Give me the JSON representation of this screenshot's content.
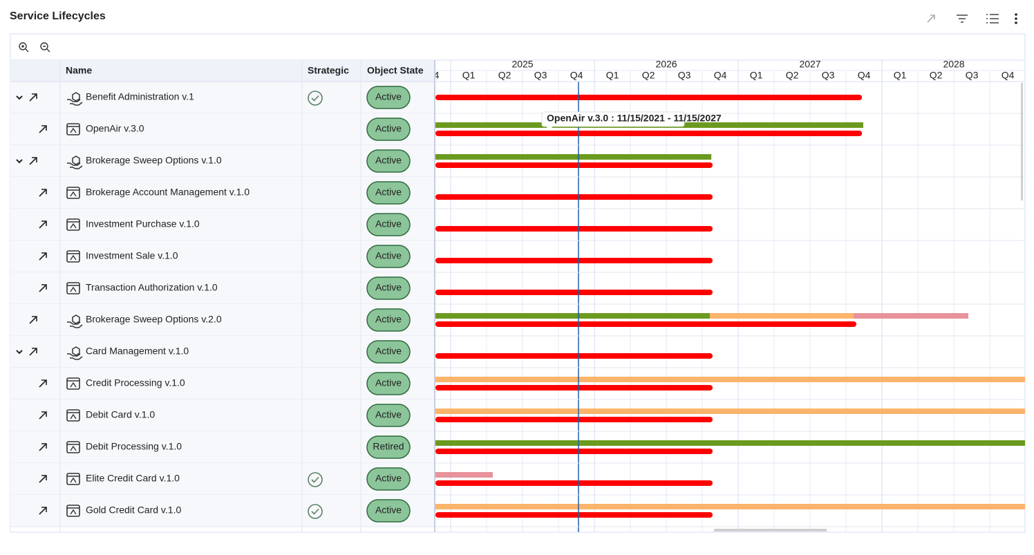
{
  "header": {
    "title": "Service Lifecycles"
  },
  "table": {
    "columns": [
      "Name",
      "Strategic",
      "Object State"
    ],
    "rows": [
      {
        "name": "Benefit Administration v.1",
        "kind": "service",
        "expandable": true,
        "strategic": true,
        "state": "Active",
        "bars": [
          {
            "color": "#ff0000",
            "start": 2024.894,
            "end": 2027.861
          }
        ]
      },
      {
        "name": "OpenAir v.3.0",
        "kind": "application",
        "expandable": false,
        "strategic": false,
        "state": "Active",
        "bars": [
          {
            "color": "#6b9a1f",
            "start": 2024.894,
            "end": 2027.87
          },
          {
            "color": "#ff0000",
            "start": 2024.894,
            "end": 2027.861
          }
        ]
      },
      {
        "name": "Brokerage Sweep Options v.1.0",
        "kind": "service",
        "expandable": true,
        "strategic": false,
        "state": "Active",
        "bars": [
          {
            "color": "#6b9a1f",
            "start": 2024.894,
            "end": 2026.813
          },
          {
            "color": "#ff0000",
            "start": 2024.894,
            "end": 2026.822
          }
        ]
      },
      {
        "name": "Brokerage Account Management v.1.0",
        "kind": "application",
        "expandable": false,
        "strategic": false,
        "state": "Active",
        "bars": [
          {
            "color": "#ff0000",
            "start": 2024.894,
            "end": 2026.822
          }
        ]
      },
      {
        "name": "Investment Purchase v.1.0",
        "kind": "application",
        "expandable": false,
        "strategic": false,
        "state": "Active",
        "bars": [
          {
            "color": "#ff0000",
            "start": 2024.894,
            "end": 2026.822
          }
        ]
      },
      {
        "name": "Investment Sale v.1.0",
        "kind": "application",
        "expandable": false,
        "strategic": false,
        "state": "Active",
        "bars": [
          {
            "color": "#ff0000",
            "start": 2024.894,
            "end": 2026.822
          }
        ]
      },
      {
        "name": "Transaction Authorization v.1.0",
        "kind": "application",
        "expandable": false,
        "strategic": false,
        "state": "Active",
        "bars": [
          {
            "color": "#ff0000",
            "start": 2024.894,
            "end": 2026.822
          }
        ]
      },
      {
        "name": "Brokerage Sweep Options v.2.0",
        "kind": "service",
        "expandable": false,
        "strategic": false,
        "state": "Active",
        "bars": [
          {
            "color": "#6b9a1f",
            "start": 2024.894,
            "end": 2026.803
          },
          {
            "color": "#fbb46b",
            "start": 2026.803,
            "end": 2027.803
          },
          {
            "color": "#e8929b",
            "start": 2027.803,
            "end": 2028.601
          },
          {
            "color": "#ff0000",
            "start": 2024.894,
            "end": 2027.822
          }
        ]
      },
      {
        "name": "Card Management v.1.0",
        "kind": "service",
        "expandable": true,
        "strategic": false,
        "state": "Active",
        "bars": [
          {
            "color": "#ff0000",
            "start": 2024.894,
            "end": 2026.822
          }
        ]
      },
      {
        "name": "Credit Processing v.1.0",
        "kind": "application",
        "expandable": false,
        "strategic": false,
        "state": "Active",
        "bars": [
          {
            "color": "#fbb46b",
            "start": 2024.894,
            "end": 2028.995
          },
          {
            "color": "#ff0000",
            "start": 2024.894,
            "end": 2026.822
          }
        ]
      },
      {
        "name": "Debit Card v.1.0",
        "kind": "application",
        "expandable": false,
        "strategic": false,
        "state": "Active",
        "bars": [
          {
            "color": "#fbb46b",
            "start": 2024.894,
            "end": 2028.995
          },
          {
            "color": "#ff0000",
            "start": 2024.894,
            "end": 2026.822
          }
        ]
      },
      {
        "name": "Debit Processing v.1.0",
        "kind": "application",
        "expandable": false,
        "strategic": false,
        "state": "Retired",
        "bars": [
          {
            "color": "#6b9a1f",
            "start": 2024.894,
            "end": 2028.995
          },
          {
            "color": "#ff0000",
            "start": 2024.894,
            "end": 2026.822
          }
        ]
      },
      {
        "name": "Elite Credit Card v.1.0",
        "kind": "application",
        "expandable": false,
        "strategic": true,
        "state": "Active",
        "bars": [
          {
            "color": "#e8929b",
            "start": 2024.894,
            "end": 2025.293
          },
          {
            "color": "#ff0000",
            "start": 2024.894,
            "end": 2026.822
          }
        ]
      },
      {
        "name": "Gold Credit Card v.1.0",
        "kind": "application",
        "expandable": false,
        "strategic": true,
        "state": "Active",
        "bars": [
          {
            "color": "#fbb46b",
            "start": 2024.894,
            "end": 2028.995
          },
          {
            "color": "#ff0000",
            "start": 2024.894,
            "end": 2026.822
          }
        ]
      }
    ]
  },
  "timeline": {
    "years": [
      2025,
      2026,
      2027,
      2028
    ],
    "quarters": [
      "Q1",
      "Q2",
      "Q3",
      "Q4"
    ],
    "xlim": [
      2024.894,
      2028.995
    ],
    "today": 2025.889
  },
  "tooltip": {
    "text": "OpenAir v.3.0 : 11/15/2021 - 11/15/2027"
  }
}
